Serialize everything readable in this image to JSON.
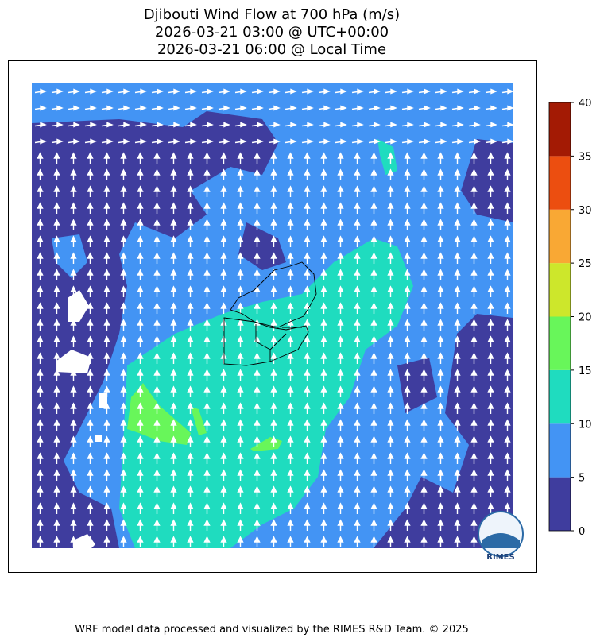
{
  "title": [
    "Djibouti Wind Flow at 700 hPa (m/s)",
    "2026-03-21 03:00 @ UTC+00:00",
    "2026-03-21 06:00 @ Local Time"
  ],
  "colorbar": {
    "ticks": [
      0,
      5,
      10,
      15,
      20,
      25,
      30,
      35,
      40
    ],
    "colors": [
      "#3f3d9e",
      "#4394f4",
      "#1fdcbf",
      "#68f65a",
      "#cde72b",
      "#f9a834",
      "#ec4e10",
      "#a31a04"
    ]
  },
  "logo": "RIMES",
  "footer": "WRF model data processed and visualized by the RIMES R&D Team. © 2025"
}
